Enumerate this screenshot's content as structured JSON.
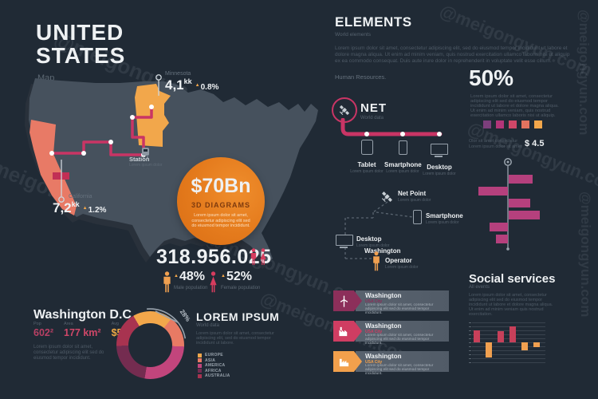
{
  "watermark": {
    "text": "@meigongyun.com"
  },
  "header": {
    "title_line1": "UNITED",
    "title_line2": "STATES",
    "subtitle": "Map"
  },
  "map": {
    "minnesota": {
      "name": "Minnesota",
      "value": "4,1",
      "unit": "kk",
      "delta": "0.8%"
    },
    "california": {
      "name": "California",
      "value": "7,2",
      "unit": "kk",
      "delta": "1.2%"
    },
    "station": {
      "name": "Station",
      "sub": "Lorem ipsum dolor"
    },
    "badge": {
      "value": "$70Bn",
      "label": "3D DIAGRAMS",
      "text": "Lorem ipsum dolor sit amet, consectetur adipiscing elit sed do eiusmod tempor incididunt."
    }
  },
  "population": {
    "total": "318.956.025",
    "male": {
      "pct": "48%",
      "label": "Male population"
    },
    "female": {
      "pct": "52%",
      "label": "Female population"
    }
  },
  "washington_dc": {
    "title": "Washington D.C.",
    "stats": [
      {
        "label": "Pop",
        "value": "602²"
      },
      {
        "label": "Area",
        "value": "177 km²"
      },
      {
        "label": "Avg",
        "value": "$55k"
      }
    ],
    "text": "Lorem ipsum dolor sit amet, consectetur adipiscing elit sed do eiusmod tempor incididunt."
  },
  "lorem_section": {
    "title": "LOREM IPSUM",
    "subtitle": "World data",
    "text": "Lorem ipsum dolor sit amet, consectetur adipiscing elit, sed do eiusmod tempor incididunt ut labore."
  },
  "elements": {
    "title": "ELEMENTS",
    "subtitle": "World elements",
    "text": "Lorem ipsum dolor sit amet, consectetur adipiscing elit, sed do eiusmod tempor incididunt ut labore et dolore magna aliqua. Ut enim ad minim veniam, quis nostrud exercitation ullamco laboris nisi ut aliquip ex ea commodo consequat. Duis aute irure dolor in reprehenderit in voluptate velit esse cillum.",
    "footer": "Human Resources."
  },
  "net": {
    "title": "NET",
    "subtitle": "World data",
    "devices": [
      {
        "label": "Tablet",
        "sub": "Lorem ipsum dolor"
      },
      {
        "label": "Smartphone",
        "sub": "Lorem ipsum dolor"
      },
      {
        "label": "Desktop",
        "sub": "Lorem ipsum dolor"
      }
    ]
  },
  "fifty": {
    "title": "50%",
    "text": "Lorem ipsum dolor sit amet, consectetur adipiscing elit sed do eiusmod tempor incididunt ut labore et dolore magna aliqua. Ut enim ad minim veniam, quis nostrud exercitation ullamco laboris nisi ut aliquip.",
    "note": "Olor sit amet consectetur\nLorem ipsum dolor sit amet",
    "price": "$ 4.5",
    "squares": [
      "#7c3f7c",
      "#b23579",
      "#cf4768",
      "#e4735f",
      "#f2a74b"
    ]
  },
  "network": {
    "net_point": {
      "label": "Net Point",
      "sub": "Lorem ipsum dolor"
    },
    "smartphone": {
      "label": "Smartphone",
      "sub": "Lorem ipsum dolor"
    },
    "desktop": {
      "label": "Desktop",
      "sub": "Lorem ipsum dolor"
    },
    "washington": {
      "label": "Washington"
    },
    "operator": {
      "label": "Operator",
      "sub": "Lorem ipsum dolor"
    }
  },
  "banners": [
    {
      "title": "Washington",
      "subtitle": "USA City",
      "text": "Lorem ipsum dolor sit amet, consectetur adipiscing elit sed do eiusmod tempor incididunt.",
      "color": "#8c2f5a",
      "icon": "wind-turbine"
    },
    {
      "title": "Washington",
      "subtitle": "USA City",
      "text": "Lorem ipsum dolor sit amet, consectetur adipiscing elit sed do eiusmod tempor incididunt.",
      "color": "#cf3d62",
      "icon": "factory"
    },
    {
      "title": "Washington",
      "subtitle": "USA City",
      "text": "Lorem ipsum dolor sit amet, consectetur adipiscing elit sed do eiusmod tempor incididunt.",
      "color": "#f2a04c",
      "icon": "plant"
    }
  ],
  "social": {
    "title": "Social services",
    "subtitle": "All events",
    "text": "Lorem ipsum dolor sit amet, consectetur adipiscing elit sed do eiusmod tempor incididunt ut labore et dolore magna aliqua. Ut enim ad minim veniam quis nostrud exercitation."
  },
  "chart_data": [
    {
      "id": "donut",
      "type": "pie",
      "title": "LOREM IPSUM",
      "start_angle_deg": -30,
      "callout": "28%",
      "legend_position": "right",
      "segments": [
        {
          "label": "EUROPE",
          "value": 19,
          "color": "#f2a74b"
        },
        {
          "label": "ASIA",
          "value": 15,
          "color": "#e87a64"
        },
        {
          "label": "AMERICA",
          "value": 27,
          "color": "#c2457c"
        },
        {
          "label": "AFRICA",
          "value": 22,
          "color": "#742c50"
        },
        {
          "label": "AUSTRALIA",
          "value": 17,
          "color": "#a83350"
        }
      ]
    },
    {
      "id": "mirror_bars",
      "type": "bar",
      "orientation": "horizontal-mirror",
      "color": "#b5407d",
      "bars": [
        {
          "side": "right",
          "length": 30
        },
        {
          "side": "left",
          "length": 37
        },
        {
          "side": "right",
          "length": 27
        },
        {
          "side": "right",
          "length": 39
        },
        {
          "side": "left",
          "length": 23
        },
        {
          "side": "left",
          "length": 15
        }
      ]
    },
    {
      "id": "social_bars",
      "type": "bar",
      "orientation": "vertical-baseline",
      "colors": {
        "up": "#c7405a",
        "down": "#f0a050"
      },
      "gridlines": 11,
      "baseline_index": 5,
      "bars": [
        {
          "dir": "up",
          "height": 15
        },
        {
          "dir": "down",
          "height": 19
        },
        {
          "dir": "up",
          "height": 14
        },
        {
          "dir": "up",
          "height": 20
        },
        {
          "dir": "down",
          "height": 10
        },
        {
          "dir": "down",
          "height": 6
        }
      ]
    }
  ]
}
